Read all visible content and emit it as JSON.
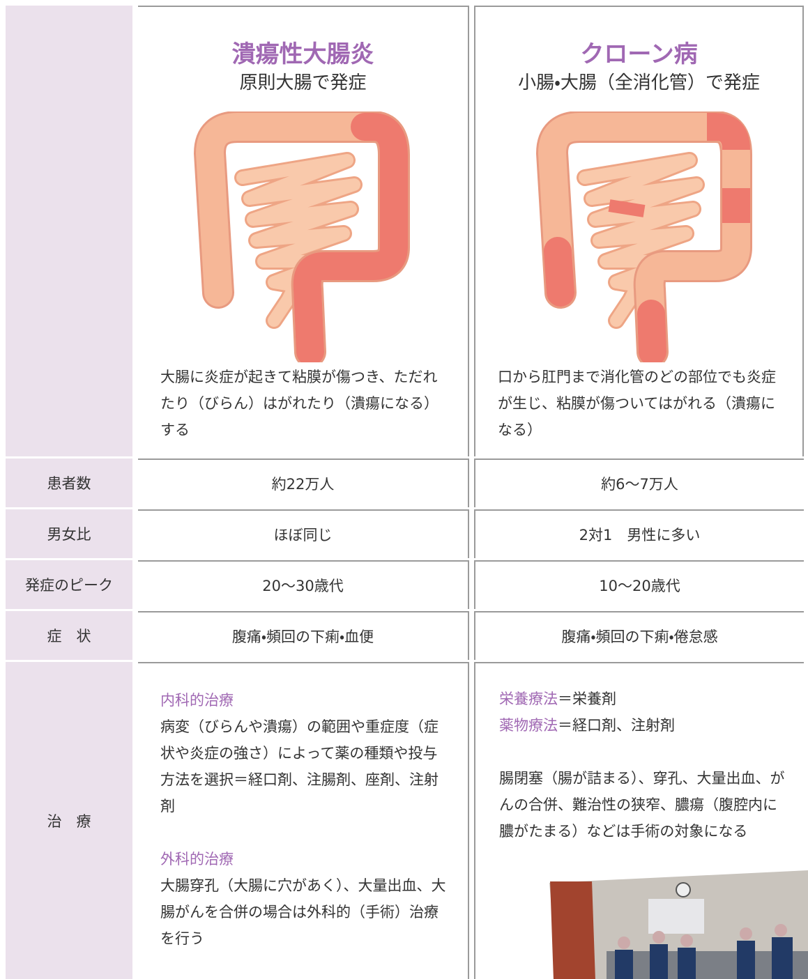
{
  "table": {
    "columns": [
      {
        "title": "潰瘍性大腸炎",
        "subtitle": "原則大腸で発症",
        "description": "大腸に炎症が起きて粘膜が傷つき、ただれたり（びらん）はがれたり（潰瘍になる）する"
      },
      {
        "title": "クローン病",
        "subtitle": "小腸・大腸（全消化管）で発症",
        "description": "口から肛門まで消化管のどの部位でも炎症が生じ、粘膜が傷ついてはがれる（潰瘍になる）"
      }
    ],
    "rows": [
      {
        "label": "患者数",
        "cells": [
          "約22万人",
          "約6〜7万人"
        ]
      },
      {
        "label": "男女比",
        "cells": [
          "ほぼ同じ",
          "2対1　男性に多い"
        ]
      },
      {
        "label": "発症のピーク",
        "cells": [
          "20〜30歳代",
          "10〜20歳代"
        ]
      },
      {
        "label": "症　状",
        "cells": [
          "腹痛・頻回の下痢・血便",
          "腹痛・頻回の下痢・倦怠感"
        ]
      }
    ],
    "treatment": {
      "label": "治　療",
      "left": [
        {
          "heading": "内科的治療",
          "text": "病変（びらんや潰瘍）の範囲や重症度（症状や炎症の強さ）によって薬の種類や投与方法を選択＝経口剤、注腸剤、座剤、注射剤"
        },
        {
          "heading": "外科的治療",
          "text": "大腸穿孔（大腸に穴があく）、大量出血、大腸がんを合併の場合は外科的（手術）治療を行う"
        }
      ],
      "right": {
        "items": [
          {
            "heading": "栄養療法",
            "text": "＝栄養剤"
          },
          {
            "heading": "薬物療法",
            "text": "＝経口剤、注射剤"
          }
        ],
        "note": "腸閉塞（腸が詰まる）、穿孔、大量出血、がんの合併、難治性の狭窄、膿瘍（腹腔内に膿がたまる）などは手術の対象になる"
      }
    }
  }
}
